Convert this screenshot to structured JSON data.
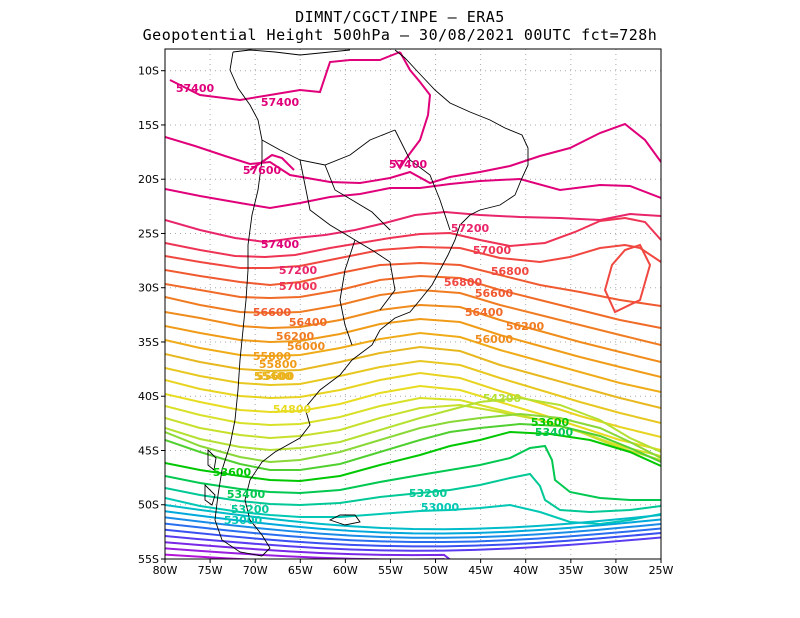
{
  "header": {
    "line1": "DIMNT/CGCT/INPE –  ERA5",
    "line2": "Geopotential Height 500hPa –  30/08/2021 00UTC fct=728h"
  },
  "axes": {
    "lat_labels": [
      "10S",
      "15S",
      "20S",
      "25S",
      "30S",
      "35S",
      "40S",
      "45S",
      "50S",
      "55S"
    ],
    "lon_labels": [
      "80W",
      "75W",
      "70W",
      "65W",
      "60W",
      "55W",
      "50W",
      "45W",
      "40W",
      "35W",
      "30W",
      "25W"
    ]
  },
  "chart_data": {
    "type": "contour",
    "variable": "Geopotential Height 500hPa",
    "units": "m",
    "lon_range": [
      -80,
      -25
    ],
    "lat_range": [
      -55,
      -8
    ],
    "contour_interval": 200,
    "contour_labels": [
      {
        "text": "57400",
        "color": "#e0007a"
      },
      {
        "text": "57400",
        "color": "#e0007a"
      },
      {
        "text": "57400",
        "color": "#e0007a"
      },
      {
        "text": "57400",
        "color": "#e0007a"
      },
      {
        "text": "57600",
        "color": "#e0007a"
      },
      {
        "text": "57200",
        "color": "#e8246a"
      },
      {
        "text": "57200",
        "color": "#e8246a"
      },
      {
        "text": "57000",
        "color": "#ee3355"
      },
      {
        "text": "57000",
        "color": "#ee3355"
      },
      {
        "text": "56800",
        "color": "#f04840"
      },
      {
        "text": "56800",
        "color": "#f04840"
      },
      {
        "text": "56600",
        "color": "#f05a30"
      },
      {
        "text": "56600",
        "color": "#f05a30"
      },
      {
        "text": "56400",
        "color": "#f06a28"
      },
      {
        "text": "56400",
        "color": "#f06a28"
      },
      {
        "text": "56200",
        "color": "#f07c22"
      },
      {
        "text": "56200",
        "color": "#f07c22"
      },
      {
        "text": "56000",
        "color": "#f08c1c"
      },
      {
        "text": "56000",
        "color": "#f08c1c"
      },
      {
        "text": "55800",
        "color": "#f09c18"
      },
      {
        "text": "55800",
        "color": "#f09c18"
      },
      {
        "text": "55600",
        "color": "#f0ac18"
      },
      {
        "text": "55400",
        "color": "#e8b820"
      },
      {
        "text": "54800",
        "color": "#e8dc20"
      },
      {
        "text": "54200",
        "color": "#b4e032"
      },
      {
        "text": "53600",
        "color": "#00c800"
      },
      {
        "text": "53600",
        "color": "#00c800"
      },
      {
        "text": "53400",
        "color": "#00c850"
      },
      {
        "text": "53400",
        "color": "#00c850"
      },
      {
        "text": "53200",
        "color": "#00c896"
      },
      {
        "text": "53200",
        "color": "#00c896"
      },
      {
        "text": "53000",
        "color": "#00c8b4"
      },
      {
        "text": "53000",
        "color": "#00c8b4"
      }
    ],
    "contour_levels": [
      {
        "value": 57600,
        "color": "#e0007a"
      },
      {
        "value": 57400,
        "color": "#e0007a"
      },
      {
        "value": 57200,
        "color": "#e8246a"
      },
      {
        "value": 57000,
        "color": "#ee3355"
      },
      {
        "value": 56800,
        "color": "#f04840"
      },
      {
        "value": 56600,
        "color": "#f05a30"
      },
      {
        "value": 56400,
        "color": "#f06a28"
      },
      {
        "value": 56200,
        "color": "#f07c22"
      },
      {
        "value": 56000,
        "color": "#f08c1c"
      },
      {
        "value": 55800,
        "color": "#f09c18"
      },
      {
        "value": 55600,
        "color": "#f0ac18"
      },
      {
        "value": 55400,
        "color": "#e8b820"
      },
      {
        "value": 55200,
        "color": "#e8c820"
      },
      {
        "value": 55000,
        "color": "#e8d420"
      },
      {
        "value": 54800,
        "color": "#e8dc20"
      },
      {
        "value": 54600,
        "color": "#d8e028"
      },
      {
        "value": 54400,
        "color": "#c8e02c"
      },
      {
        "value": 54200,
        "color": "#b4e032"
      },
      {
        "value": 54000,
        "color": "#8ad838"
      },
      {
        "value": 53800,
        "color": "#50d030"
      },
      {
        "value": 53600,
        "color": "#00c800"
      },
      {
        "value": 53400,
        "color": "#00c850"
      },
      {
        "value": 53200,
        "color": "#00c896"
      },
      {
        "value": 53000,
        "color": "#00c8b4"
      },
      {
        "value": 52800,
        "color": "#00bcc8"
      },
      {
        "value": 52600,
        "color": "#00a8dc"
      },
      {
        "value": 52400,
        "color": "#1a8ce8"
      },
      {
        "value": 52200,
        "color": "#2a6ef0"
      },
      {
        "value": 52000,
        "color": "#3a50f0"
      },
      {
        "value": 51800,
        "color": "#5a3cf0"
      },
      {
        "value": 51600,
        "color": "#7a28e8"
      },
      {
        "value": 51400,
        "color": "#9a1ee0"
      },
      {
        "value": 51200,
        "color": "#b414d8"
      },
      {
        "value": 51000,
        "color": "#c80ad0"
      }
    ]
  }
}
